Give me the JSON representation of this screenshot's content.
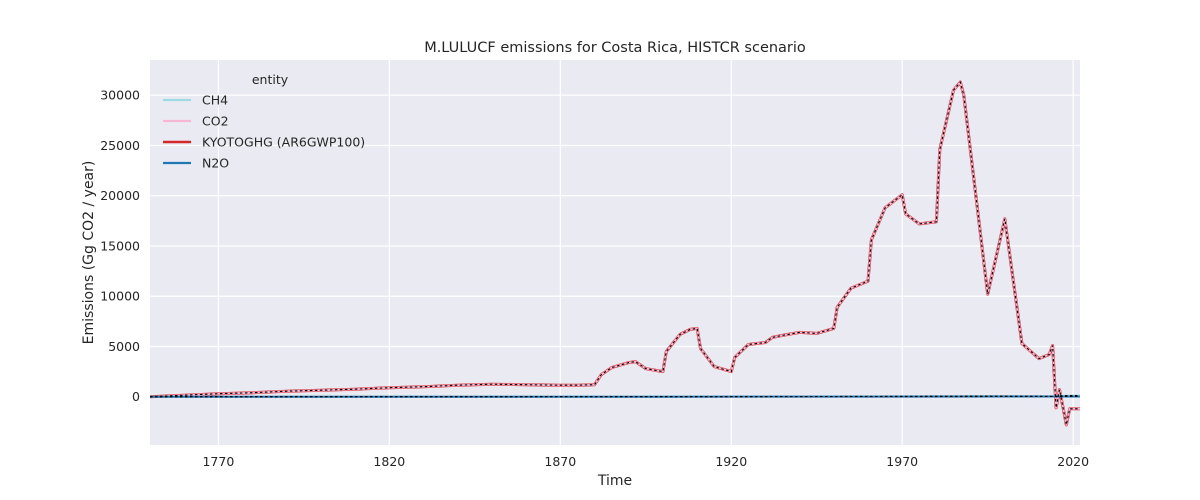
{
  "chart_data": {
    "type": "line",
    "title": "M.LULUCF emissions for Costa Rica, HISTCR scenario",
    "xlabel": "Time",
    "ylabel": "Emissions (Gg CO2 / year)",
    "xlim": [
      1750,
      2022
    ],
    "ylim": [
      -4800,
      33500
    ],
    "x_ticks": [
      1770,
      1820,
      1870,
      1920,
      1970,
      2020
    ],
    "y_ticks": [
      0,
      5000,
      10000,
      15000,
      20000,
      25000,
      30000
    ],
    "grid": true,
    "legend": {
      "title": "entity",
      "placement": "top-left",
      "entries": [
        "CH4",
        "CO2",
        "KYOTOGHG (AR6GWP100)",
        "N2O"
      ]
    },
    "colors": {
      "background": "#eaeaf2",
      "grid": "#ffffff",
      "CH4": "#9edae5",
      "CO2": "#f7b6d2",
      "KYOTOGHG": "#d62728",
      "N2O": "#1f77b4",
      "overlay": "#000000"
    },
    "series": [
      {
        "name": "CH4",
        "x": [
          1750,
          1800,
          1900,
          1950,
          1990,
          2000,
          2010,
          2015,
          2016,
          2018,
          2022
        ],
        "y": [
          0,
          5,
          10,
          20,
          60,
          60,
          50,
          30,
          90,
          110,
          110
        ]
      },
      {
        "name": "CO2",
        "x": [
          1750,
          1760,
          1770,
          1780,
          1790,
          1800,
          1810,
          1820,
          1830,
          1840,
          1850,
          1860,
          1870,
          1875,
          1880,
          1882,
          1885,
          1890,
          1892,
          1895,
          1900,
          1901,
          1905,
          1908,
          1910,
          1911,
          1915,
          1920,
          1921,
          1925,
          1930,
          1932,
          1935,
          1940,
          1945,
          1950,
          1951,
          1955,
          1960,
          1961,
          1965,
          1970,
          1971,
          1975,
          1980,
          1981,
          1985,
          1987,
          1988,
          1995,
          2000,
          2005,
          2010,
          2013,
          2014,
          2015,
          2016,
          2017,
          2018,
          2019,
          2022
        ],
        "y": [
          0,
          150,
          300,
          400,
          550,
          650,
          750,
          900,
          1000,
          1150,
          1250,
          1200,
          1150,
          1150,
          1200,
          2200,
          2900,
          3400,
          3500,
          2800,
          2500,
          4500,
          6200,
          6700,
          6800,
          4800,
          3000,
          2500,
          3900,
          5200,
          5400,
          5900,
          6100,
          6400,
          6300,
          6800,
          8900,
          10800,
          11500,
          15600,
          18800,
          20100,
          18200,
          17200,
          17400,
          24600,
          30500,
          31300,
          30000,
          10200,
          17700,
          5300,
          3800,
          4200,
          5100,
          -1100,
          700,
          -1000,
          -2800,
          -1200,
          -1200
        ]
      },
      {
        "name": "KYOTOGHG (AR6GWP100)",
        "x": [
          1750,
          1760,
          1770,
          1780,
          1790,
          1800,
          1810,
          1820,
          1830,
          1840,
          1850,
          1860,
          1870,
          1875,
          1880,
          1882,
          1885,
          1890,
          1892,
          1895,
          1900,
          1901,
          1905,
          1908,
          1910,
          1911,
          1915,
          1920,
          1921,
          1925,
          1930,
          1932,
          1935,
          1940,
          1945,
          1950,
          1951,
          1955,
          1960,
          1961,
          1965,
          1970,
          1971,
          1975,
          1980,
          1981,
          1985,
          1987,
          1988,
          1995,
          2000,
          2005,
          2010,
          2013,
          2014,
          2015,
          2016,
          2017,
          2018,
          2019,
          2022
        ],
        "y": [
          0,
          150,
          300,
          400,
          550,
          650,
          750,
          900,
          1000,
          1150,
          1250,
          1200,
          1150,
          1150,
          1200,
          2200,
          2900,
          3400,
          3500,
          2800,
          2500,
          4500,
          6200,
          6700,
          6800,
          4800,
          3000,
          2500,
          3900,
          5200,
          5400,
          5900,
          6100,
          6400,
          6300,
          6800,
          8900,
          10800,
          11500,
          15600,
          18800,
          20100,
          18200,
          17200,
          17400,
          24600,
          30500,
          31300,
          30000,
          10200,
          17700,
          5300,
          3800,
          4200,
          5100,
          -1100,
          700,
          -1000,
          -2800,
          -1200,
          -1200
        ]
      },
      {
        "name": "N2O",
        "x": [
          1750,
          1900,
          1950,
          2000,
          2010,
          2022
        ],
        "y": [
          0,
          0,
          10,
          20,
          20,
          20
        ]
      }
    ]
  }
}
